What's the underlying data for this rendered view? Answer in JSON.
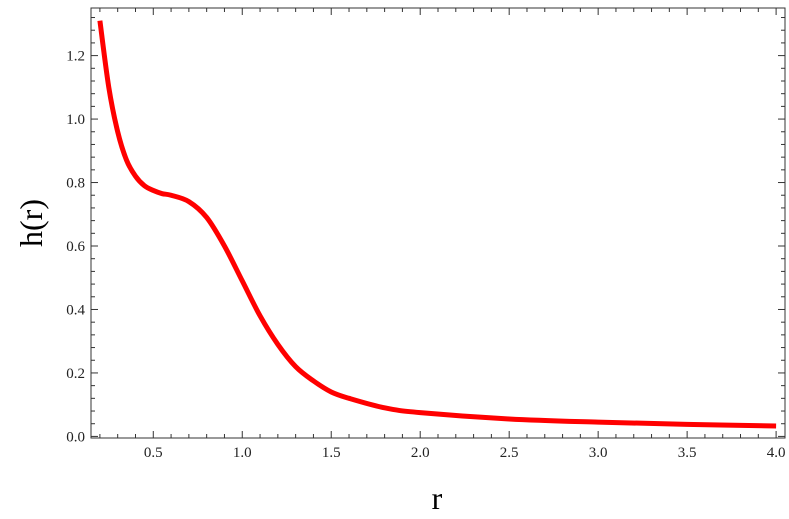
{
  "chart_data": {
    "type": "line",
    "title": "",
    "xlabel": "r",
    "ylabel": "h(r)",
    "xlim": [
      0.15,
      4.05
    ],
    "ylim": [
      -0.005,
      1.35
    ],
    "grid": false,
    "legend": "none",
    "x_ticks": [
      0.5,
      1.0,
      1.5,
      2.0,
      2.5,
      3.0,
      3.5,
      4.0
    ],
    "x_tick_labels": [
      "0.5",
      "1.0",
      "1.5",
      "2.0",
      "2.5",
      "3.0",
      "3.5",
      "4.0"
    ],
    "y_ticks": [
      0.0,
      0.2,
      0.4,
      0.6,
      0.8,
      1.0,
      1.2
    ],
    "y_tick_labels": [
      "0.0",
      "0.2",
      "0.4",
      "0.6",
      "0.8",
      "1.0",
      "1.2"
    ],
    "series": [
      {
        "color": "#ff0000",
        "x": [
          0.2,
          0.25,
          0.3,
          0.35,
          0.4,
          0.45,
          0.5,
          0.55,
          0.6,
          0.7,
          0.8,
          0.9,
          1.0,
          1.1,
          1.2,
          1.3,
          1.4,
          1.5,
          1.6,
          1.8,
          2.0,
          2.5,
          3.0,
          3.5,
          4.0
        ],
        "y": [
          1.31,
          1.1,
          0.96,
          0.87,
          0.82,
          0.79,
          0.775,
          0.765,
          0.76,
          0.74,
          0.69,
          0.6,
          0.49,
          0.38,
          0.29,
          0.22,
          0.175,
          0.14,
          0.12,
          0.09,
          0.075,
          0.055,
          0.045,
          0.038,
          0.033
        ]
      }
    ]
  }
}
